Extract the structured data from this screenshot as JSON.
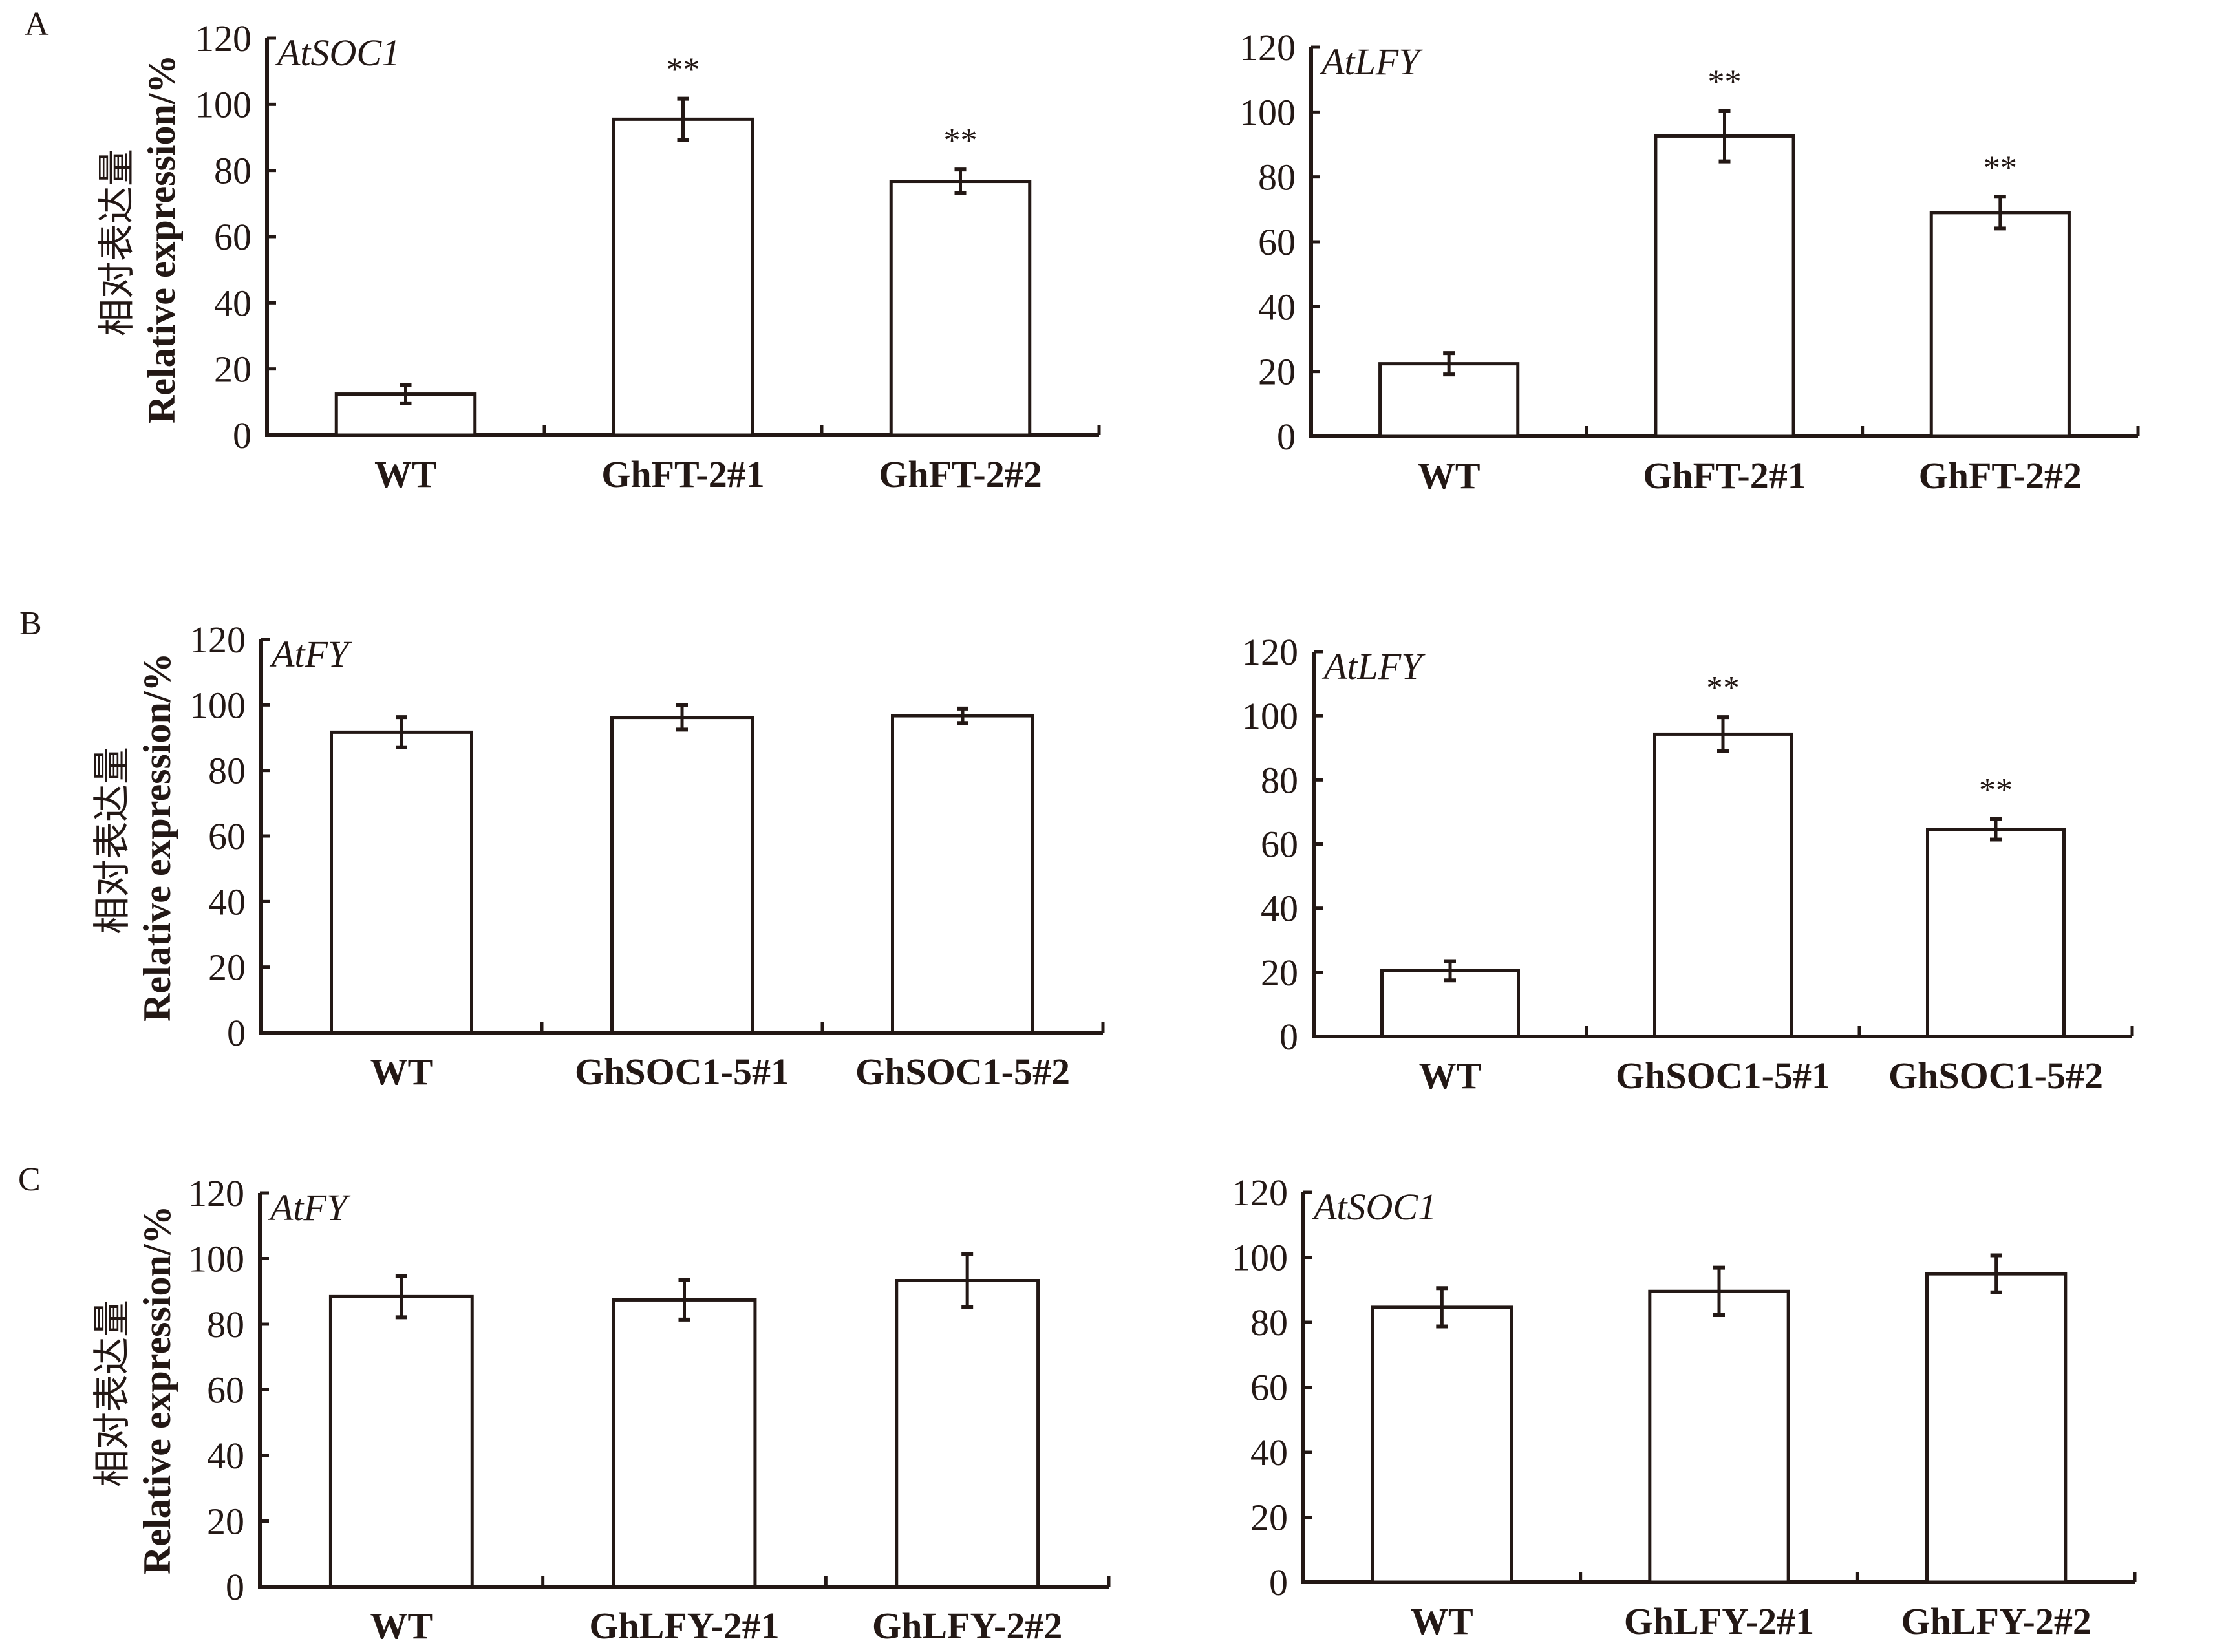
{
  "figure": {
    "panel_labels": [
      "A",
      "B",
      "C"
    ],
    "ylabel_cn": "相对表达量",
    "ylabel_en": "Relative expression/%",
    "significance_marker": "**"
  },
  "colors": {
    "ink": "#231815",
    "bar_fill": "#ffffff",
    "background": "#ffffff"
  },
  "chart_data": [
    {
      "id": "A-left",
      "panel": "A",
      "type": "bar",
      "title": "AtSOC1",
      "categories": [
        "WT",
        "GhFT-2#1",
        "GhFT-2#2"
      ],
      "values": [
        12.4,
        95.5,
        76.7
      ],
      "errors": [
        2.8,
        6.2,
        3.6
      ],
      "significance": [
        "",
        "**",
        "**"
      ],
      "ylabel": "相对表达量 Relative expression/%",
      "xlabel": "",
      "ylim": [
        0,
        120
      ],
      "yticks": [
        0,
        20,
        40,
        60,
        80,
        100,
        120
      ],
      "grid": false
    },
    {
      "id": "A-right",
      "panel": "A",
      "type": "bar",
      "title": "AtLFY",
      "categories": [
        "WT",
        "GhFT-2#1",
        "GhFT-2#2"
      ],
      "values": [
        22.4,
        92.6,
        69.0
      ],
      "errors": [
        3.3,
        7.8,
        4.9
      ],
      "significance": [
        "",
        "**",
        "**"
      ],
      "ylabel": "",
      "xlabel": "",
      "ylim": [
        0,
        120
      ],
      "yticks": [
        0,
        20,
        40,
        60,
        80,
        100,
        120
      ],
      "grid": false
    },
    {
      "id": "B-left",
      "panel": "B",
      "type": "bar",
      "title": "AtFY",
      "categories": [
        "WT",
        "GhSOC1-5#1",
        "GhSOC1-5#2"
      ],
      "values": [
        91.7,
        96.2,
        96.7
      ],
      "errors": [
        4.6,
        3.7,
        2.2
      ],
      "significance": [
        "",
        "",
        ""
      ],
      "ylabel": "相对表达量 Relative expression/%",
      "xlabel": "",
      "ylim": [
        0,
        120
      ],
      "yticks": [
        0,
        20,
        40,
        60,
        80,
        100,
        120
      ],
      "grid": false
    },
    {
      "id": "B-right",
      "panel": "B",
      "type": "bar",
      "title": "AtLFY",
      "categories": [
        "WT",
        "GhSOC1-5#1",
        "GhSOC1-5#2"
      ],
      "values": [
        20.5,
        94.3,
        64.6
      ],
      "errors": [
        3.0,
        5.3,
        3.2
      ],
      "significance": [
        "",
        "**",
        "**"
      ],
      "ylabel": "",
      "xlabel": "",
      "ylim": [
        0,
        120
      ],
      "yticks": [
        0,
        20,
        40,
        60,
        80,
        100,
        120
      ],
      "grid": false
    },
    {
      "id": "C-left",
      "panel": "C",
      "type": "bar",
      "title": "AtFY",
      "categories": [
        "WT",
        "GhLFY-2#1",
        "GhLFY-2#2"
      ],
      "values": [
        88.4,
        87.4,
        93.3
      ],
      "errors": [
        6.3,
        6.0,
        8.0
      ],
      "significance": [
        "",
        "",
        ""
      ],
      "ylabel": "相对表达量 Relative expression/%",
      "xlabel": "",
      "ylim": [
        0,
        120
      ],
      "yticks": [
        0,
        20,
        40,
        60,
        80,
        100,
        120
      ],
      "grid": false
    },
    {
      "id": "C-right",
      "panel": "C",
      "type": "bar",
      "title": "AtSOC1",
      "categories": [
        "WT",
        "GhLFY-2#1",
        "GhLFY-2#2"
      ],
      "values": [
        84.6,
        89.5,
        94.9
      ],
      "errors": [
        5.9,
        7.3,
        5.7
      ],
      "significance": [
        "",
        "",
        ""
      ],
      "ylabel": "",
      "xlabel": "",
      "ylim": [
        0,
        120
      ],
      "yticks": [
        0,
        20,
        40,
        60,
        80,
        100,
        120
      ],
      "grid": false
    }
  ]
}
